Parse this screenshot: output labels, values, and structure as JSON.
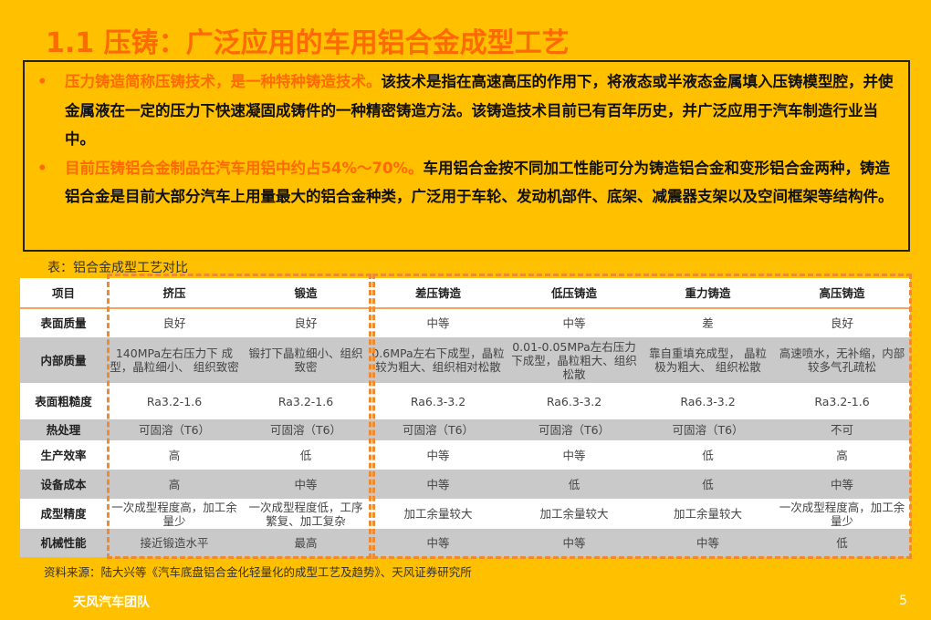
{
  "title": "1.1 压铸：广泛应用的车用铝合金成型工艺",
  "bullets": [
    {
      "highlight": "压力铸造简称压铸技术，是一种特种铸造技术。",
      "text": "该技术是指在高速高压的作用下，将液态或半液态金属填入压铸模型腔，并使金属液在一定的压力下快速凝固成铸件的一种精密铸造方法。该铸造技术目前已有百年历史，并广泛应用于汽车制造行业当中。"
    },
    {
      "highlight": "目前压铸铝合金制品在汽车用铝中约占54%～70%。",
      "text": "车用铝合金按不同加工性能可分为铸造铝合金和变形铝合金两种，铸造铝合金是目前大部分汽车上用量最大的铝合金种类，广泛用于车轮、发动机部件、底架、减震器支架以及空间框架等结构件。"
    }
  ],
  "bullet_glyph": "•",
  "caption": "表：铝合金成型工艺对比",
  "table": {
    "headers": [
      "项目",
      "挤压",
      "锻造",
      "差压铸造",
      "低压铸造",
      "重力铸造",
      "高压铸造"
    ],
    "rows": [
      [
        "表面质量",
        "良好",
        "良好",
        "中等",
        "中等",
        "差",
        "良好"
      ],
      [
        "内部质量",
        "140MPa左右压力下 成型，晶粒细小、 组织致密",
        "锻打下晶粒细小、组织致密",
        "0.6MPa左右下成型，晶粒较为粗大、组织相对松散",
        "0.01-0.05MPa左右压力下成型，晶粒粗大、组织松散",
        "靠自重填充成型， 晶粒极为粗大、 组织松散",
        "高速喷水，无补缩，内部较多气孔疏松"
      ],
      [
        "表面粗糙度",
        "Ra3.2-1.6",
        "Ra3.2-1.6",
        "Ra6.3-3.2",
        "Ra6.3-3.2",
        "Ra6.3-3.2",
        "Ra3.2-1.6"
      ],
      [
        "热处理",
        "可固溶（T6）",
        "可固溶（T6）",
        "可固溶（T6）",
        "可固溶（T6）",
        "可固溶（T6）",
        "不可"
      ],
      [
        "生产效率",
        "高",
        "低",
        "中等",
        "中等",
        "低",
        "高"
      ],
      [
        "设备成本",
        "高",
        "中等",
        "中等",
        "低",
        "低",
        "中等"
      ],
      [
        "成型精度",
        "一次成型程度高，加工余量少",
        "一次成型程度低，工序繁复、加工复杂",
        "加工余量较大",
        "加工余量较大",
        "加工余量较大",
        "一次成型程度高，加工余量少"
      ],
      [
        "机械性能",
        "接近锻造水平",
        "最高",
        "中等",
        "中等",
        "中等",
        "低"
      ]
    ]
  },
  "source": "资料来源：陆大兴等《汽车底盘铝合金化轻量化的成型工艺及趋势》、天风证券研究所",
  "footer": "天风汽车团队",
  "page_number": "5",
  "colors": {
    "background": "#FFC000",
    "accent": "#FF6A00",
    "dashed_border": "#F08A30",
    "row_gray": "#C9C9C9"
  }
}
